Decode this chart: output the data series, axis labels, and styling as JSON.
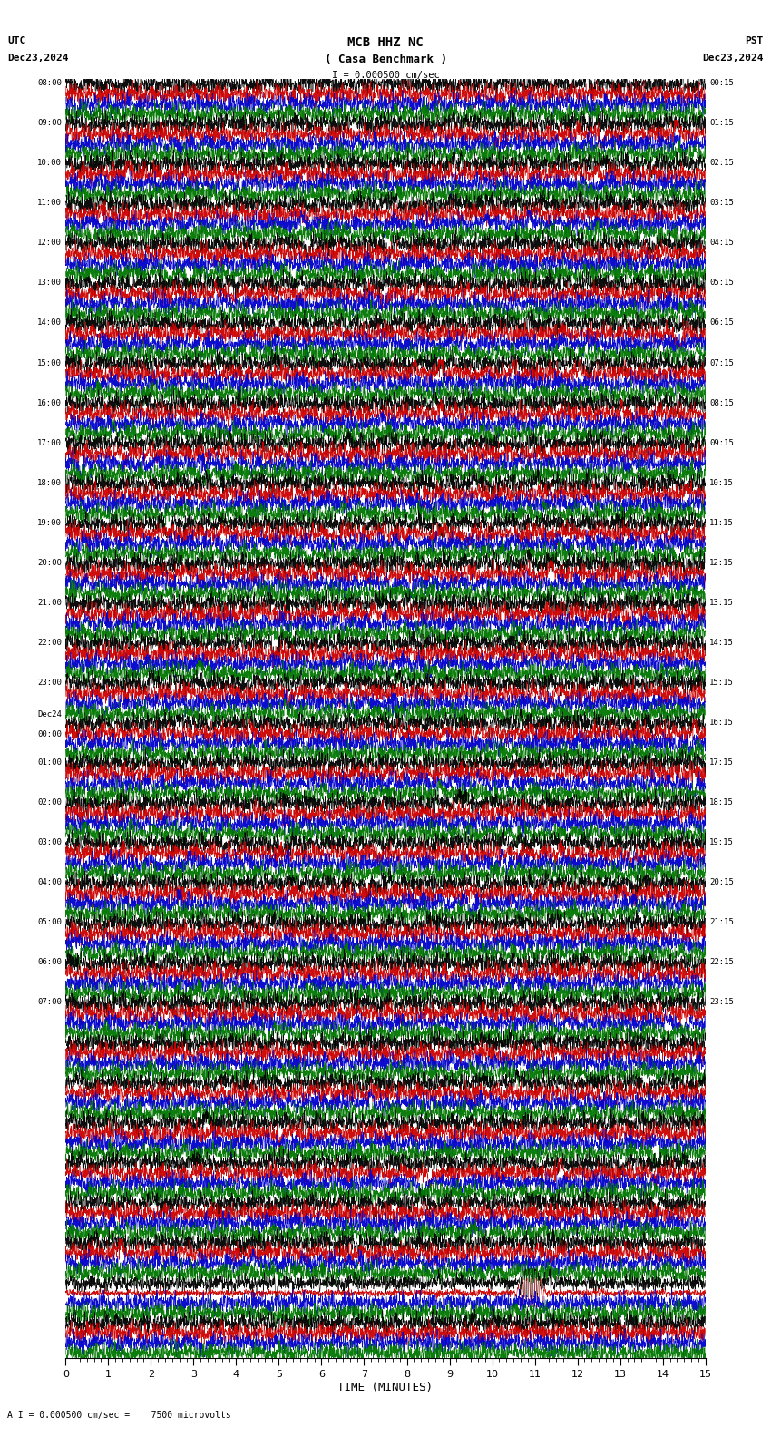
{
  "title_line1": "MCB HHZ NC",
  "title_line2": "( Casa Benchmark )",
  "title_scale": "I = 0.000500 cm/sec",
  "utc_label": "UTC",
  "utc_date": "Dec23,2024",
  "pst_label": "PST",
  "pst_date": "Dec23,2024",
  "xlabel": "TIME (MINUTES)",
  "footer": "A I = 0.000500 cm/sec =    7500 microvolts",
  "xmin": 0,
  "xmax": 15,
  "xticks": [
    0,
    1,
    2,
    3,
    4,
    5,
    6,
    7,
    8,
    9,
    10,
    11,
    12,
    13,
    14,
    15
  ],
  "bg_color": "#ffffff",
  "trace_colors": [
    "#000000",
    "#cc0000",
    "#0000cc",
    "#007700"
  ],
  "num_rows": 32,
  "left_times_utc": [
    "08:00",
    "09:00",
    "10:00",
    "11:00",
    "12:00",
    "13:00",
    "14:00",
    "15:00",
    "16:00",
    "17:00",
    "18:00",
    "19:00",
    "20:00",
    "21:00",
    "22:00",
    "23:00",
    "Dec24\n00:00",
    "01:00",
    "02:00",
    "03:00",
    "04:00",
    "05:00",
    "06:00",
    "07:00",
    "",
    "",
    "",
    "",
    "",
    "",
    "",
    ""
  ],
  "right_times_pst": [
    "00:15",
    "01:15",
    "02:15",
    "03:15",
    "04:15",
    "05:15",
    "06:15",
    "07:15",
    "08:15",
    "09:15",
    "10:15",
    "11:15",
    "12:15",
    "13:15",
    "14:15",
    "15:15",
    "16:15",
    "17:15",
    "18:15",
    "19:15",
    "20:15",
    "21:15",
    "22:15",
    "23:15",
    "",
    "",
    "",
    "",
    "",
    "",
    "",
    ""
  ],
  "earthquake_row": 30,
  "earthquake_minute": 10.9,
  "amplitude_scale": 0.4,
  "noise_amplitude": 0.3,
  "earthquake_amplitude": 3.5
}
